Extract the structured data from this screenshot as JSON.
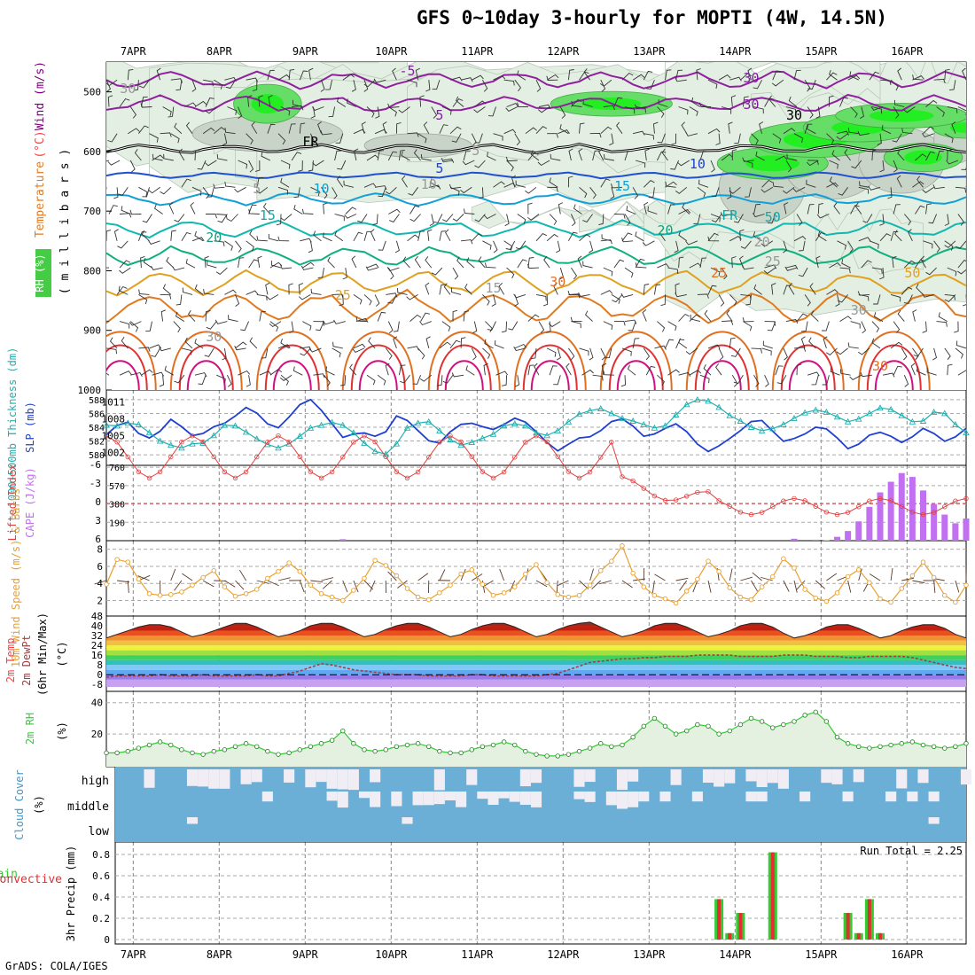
{
  "title": "GFS 0~10day 3-hourly for MOPTI (4W, 14.5N)",
  "credit": "GrADS: COLA/IGES",
  "colors": {
    "wind": "#800080",
    "temperature": "#ff4040",
    "rh": "#33cc33",
    "thickness": "#20b0b0",
    "slp": "#2040d0",
    "cape": "#c070f0",
    "lifted_index": "#e04040",
    "wind10m": "#e8a030",
    "dewpoint": "#a04040",
    "cloud_blue": "#6baed6",
    "cloud_clear": "#f0eef4",
    "rain": "#33cc33",
    "convective": "#e03030"
  },
  "chart_data": {
    "type": "meteogram",
    "date_labels": [
      "7APR",
      "8APR",
      "9APR",
      "10APR",
      "11APR",
      "12APR",
      "13APR",
      "14APR",
      "15APR",
      "16APR"
    ],
    "panels": [
      {
        "id": "upper",
        "type": "heatmap",
        "ylabel_parts": [
          "RH (%)",
          "Temperature",
          "(°C)",
          "Wind (m/s)"
        ],
        "ylabel_units": "( m i l l i b a r s )",
        "yticks": [
          500,
          600,
          700,
          800,
          900,
          1000
        ],
        "ylim": [
          450,
          1000
        ],
        "contour_labels": [
          "-5",
          "5",
          "FR",
          "5",
          "10",
          "15",
          "20",
          "25",
          "30",
          "30",
          "10",
          "15",
          "20",
          "25",
          "30",
          "50",
          "30",
          "30",
          "-5",
          "5",
          "10",
          "15",
          "20",
          "25",
          "30",
          "30",
          "FR",
          "50",
          "30"
        ]
      },
      {
        "id": "slp",
        "type": "line",
        "ylabel_left": "1000-500mb Thickness (dm)",
        "ylabel_right": "SLP (mb)",
        "left_ticks": [
          580,
          582,
          584,
          586,
          588
        ],
        "right_ticks": [
          1002,
          1005,
          1008,
          1011
        ],
        "series": [
          {
            "name": "SLP (mb)",
            "values": [
              1005.2,
              1006.8,
              1007.4,
              1005.4,
              1004.6,
              1005.8,
              1007.9,
              1006.6,
              1005.0,
              1005.4,
              1006.6,
              1007.2,
              1008.5,
              1010.0,
              1009.0,
              1007.1,
              1006.4,
              1008.3,
              1010.5,
              1011.4,
              1009.5,
              1007.1,
              1004.7,
              1005.3,
              1005.5,
              1004.9,
              1005.7,
              1008.5,
              1007.7,
              1005.9,
              1004.1,
              1003.7,
              1005.7,
              1007.0,
              1007.2,
              1006.6,
              1006.1,
              1007.0,
              1008.1,
              1007.4,
              1005.7,
              1003.8,
              1002.3,
              1003.5,
              1004.6,
              1004.8,
              1005.9,
              1007.5,
              1008.0,
              1006.7,
              1004.9,
              1005.3,
              1006.3,
              1007.1,
              1005.7,
              1003.5,
              1002.2,
              1003.2,
              1004.5,
              1005.9,
              1007.5,
              1007.7,
              1005.8,
              1004.0,
              1004.5,
              1005.3,
              1006.5,
              1006.2,
              1004.6,
              1002.7,
              1003.5,
              1005.1,
              1005.6,
              1004.9,
              1003.8,
              1004.8,
              1006.3,
              1005.4,
              1004.0,
              1004.8,
              1006.3
            ]
          },
          {
            "name": "1000-500mb Thickness (dm)",
            "values": [
              584.3,
              584.2,
              584.6,
              584.4,
              583.2,
              582.0,
              581.4,
              581.0,
              581.6,
              581.7,
              582.8,
              584.3,
              584.2,
              583.3,
              582.3,
              581.5,
              581.0,
              581.6,
              582.7,
              583.9,
              584.3,
              584.7,
              584.3,
              583.2,
              581.7,
              580.5,
              580.1,
              581.6,
              583.9,
              584.6,
              584.8,
              583.5,
              582.2,
              581.4,
              581.8,
              582.4,
              583.0,
              584.2,
              584.5,
              584.2,
              583.2,
              582.8,
              583.5,
              584.8,
              585.9,
              586.4,
              586.7,
              586.0,
              585.3,
              584.9,
              584.4,
              583.9,
              584.2,
              585.8,
              587.3,
              588.0,
              587.8,
              586.9,
              585.7,
              584.9,
              584.0,
              583.5,
              583.8,
              584.4,
              585.3,
              586.1,
              586.5,
              586.2,
              585.5,
              584.8,
              585.2,
              586.0,
              586.8,
              586.6,
              585.7,
              584.8,
              584.9,
              586.2,
              586.0,
              584.4,
              583.2
            ]
          }
        ]
      },
      {
        "id": "cape",
        "type": "bar",
        "ylabel_left": "Lifted Index",
        "ylabel_right": "CAPE (J/kg)",
        "left_ticks": [
          "6",
          "3",
          "0",
          "-3",
          "-6"
        ],
        "right_ticks": [
          190,
          380,
          570,
          760
        ],
        "series": [
          {
            "name": "CAPE (J/kg)",
            "values": [
              0,
              0,
              0,
              0,
              0,
              0,
              0,
              0,
              0,
              0,
              0,
              0,
              0,
              0,
              0,
              0,
              0,
              0,
              0,
              0,
              0,
              0,
              15,
              0,
              0,
              0,
              0,
              0,
              0,
              0,
              0,
              0,
              0,
              0,
              0,
              0,
              0,
              0,
              0,
              0,
              0,
              0,
              0,
              0,
              0,
              0,
              0,
              0,
              0,
              0,
              0,
              0,
              0,
              0,
              0,
              0,
              0,
              0,
              0,
              0,
              0,
              0,
              0,
              0,
              20,
              0,
              10,
              5,
              40,
              100,
              200,
              350,
              500,
              610,
              700,
              660,
              520,
              380,
              270,
              180,
              230
            ]
          },
          {
            "name": "Lifted Index",
            "values": []
          }
        ]
      },
      {
        "id": "wind10m",
        "type": "line",
        "ylabel": "10m Wind Speed (m/s) & Barbs",
        "yticks": [
          2,
          4,
          6,
          8
        ],
        "series": [
          {
            "name": "10m Wind Speed",
            "values": [
              3.9,
              6.8,
              6.5,
              4.5,
              2.8,
              2.6,
              2.7,
              3.0,
              3.8,
              4.7,
              5.5,
              3.6,
              2.5,
              2.8,
              3.3,
              4.6,
              5.4,
              6.4,
              5.4,
              3.8,
              2.8,
              2.4,
              2.0,
              3.2,
              4.6,
              6.7,
              6.1,
              4.9,
              3.4,
              2.4,
              2.1,
              2.9,
              3.8,
              5.1,
              5.6,
              3.9,
              2.6,
              2.9,
              3.6,
              5.1,
              6.2,
              4.1,
              2.7,
              2.4,
              2.6,
              3.8,
              5.5,
              6.6,
              8.4,
              5.2,
              3.6,
              2.6,
              2.2,
              1.7,
              3.1,
              4.5,
              6.6,
              5.4,
              3.5,
              2.4,
              2.1,
              3.6,
              4.8,
              6.9,
              5.8,
              3.3,
              2.3,
              1.9,
              2.9,
              4.8,
              5.6,
              4.1,
              2.2,
              1.8,
              3.4,
              4.9,
              6.5,
              4.7,
              2.6,
              1.8,
              3.8
            ]
          }
        ]
      },
      {
        "id": "temp2m",
        "type": "area",
        "ylabel": "2m Temp 2m DewPt (6hr Min/Max) (°C)",
        "yticks": [
          -8,
          0,
          8,
          16,
          24,
          32,
          40,
          48
        ],
        "series": [
          {
            "name": "2m Temp",
            "values": [
              30,
              33,
              36,
              39,
              41,
              41,
              39,
              35,
              31,
              33,
              36,
              39,
              42,
              42,
              39,
              35,
              31,
              33,
              36,
              40,
              42,
              42,
              39,
              35,
              31,
              33,
              37,
              40,
              42,
              42,
              39,
              35,
              31,
              33,
              37,
              40,
              42,
              42,
              39,
              35,
              31,
              33,
              37,
              40,
              42,
              43,
              39,
              35,
              31,
              33,
              36,
              40,
              42,
              42,
              39,
              35,
              31,
              33,
              36,
              40,
              42,
              42,
              39,
              34,
              30,
              32,
              35,
              39,
              41,
              41,
              38,
              34,
              30,
              32,
              36,
              39,
              41,
              41,
              38,
              33,
              30
            ]
          },
          {
            "name": "2m DewPt",
            "values": [
              -2,
              -1,
              -1,
              -1,
              -1,
              0,
              -1,
              -1,
              -1,
              0,
              -1,
              -1,
              -1,
              -1,
              0,
              -1,
              -1,
              1,
              3,
              6,
              9,
              8,
              6,
              4,
              3,
              2,
              1,
              0,
              0,
              0,
              -1,
              -1,
              -1,
              -1,
              0,
              0,
              -1,
              -1,
              -1,
              -1,
              -1,
              0,
              1,
              4,
              7,
              10,
              11,
              12,
              13,
              13,
              14,
              14,
              15,
              15,
              15,
              16,
              16,
              16,
              16,
              15,
              15,
              15,
              15,
              16,
              16,
              16,
              15,
              15,
              15,
              14,
              14,
              15,
              15,
              15,
              15,
              14,
              12,
              10,
              8,
              6,
              5
            ]
          }
        ]
      },
      {
        "id": "rh2m",
        "type": "line",
        "ylabel": "2m RH (%)",
        "yticks": [
          20,
          40
        ],
        "series": [
          {
            "name": "2m RH",
            "values": [
              8,
              8,
              9,
              11,
              13,
              15,
              13,
              10,
              8,
              7,
              9,
              10,
              12,
              14,
              12,
              9,
              7,
              8,
              10,
              12,
              14,
              16,
              22,
              14,
              10,
              9,
              10,
              12,
              13,
              14,
              12,
              9,
              8,
              8,
              10,
              12,
              13,
              15,
              13,
              9,
              7,
              6,
              6,
              7,
              9,
              11,
              14,
              12,
              13,
              18,
              25,
              30,
              25,
              20,
              22,
              26,
              25,
              20,
              22,
              26,
              30,
              28,
              24,
              26,
              28,
              32,
              34,
              28,
              18,
              14,
              12,
              11,
              12,
              13,
              14,
              15,
              13,
              12,
              11,
              12,
              14
            ]
          }
        ]
      },
      {
        "id": "cloud",
        "type": "heatmap",
        "ylabel": "Cloud Cover (%)",
        "row_labels": [
          "high",
          "middle",
          "low"
        ]
      },
      {
        "id": "precip",
        "type": "bar",
        "ylabel_left": "Total / Rain",
        "ylabel_left2": "Convective",
        "ylabel": "3hr Precip (mm)",
        "yticks": [
          0,
          0.2,
          0.4,
          0.6,
          0.8
        ],
        "annotation": "Run Total = 2.25",
        "series": [
          {
            "name": "3hr Precip",
            "values": [
              0,
              0,
              0,
              0,
              0,
              0,
              0,
              0,
              0,
              0,
              0,
              0,
              0,
              0,
              0,
              0,
              0,
              0,
              0,
              0,
              0,
              0,
              0,
              0,
              0,
              0,
              0,
              0,
              0,
              0,
              0,
              0,
              0,
              0,
              0,
              0,
              0,
              0,
              0,
              0,
              0,
              0,
              0,
              0,
              0,
              0,
              0,
              0,
              0,
              0,
              0,
              0,
              0,
              0,
              0,
              0,
              0,
              0.38,
              0.06,
              0.25,
              0,
              0,
              0.82,
              0,
              0,
              0,
              0,
              0,
              0,
              0.25,
              0.06,
              0.38,
              0.06,
              0,
              0,
              0,
              0,
              0,
              0,
              0,
              0
            ]
          }
        ]
      }
    ]
  }
}
